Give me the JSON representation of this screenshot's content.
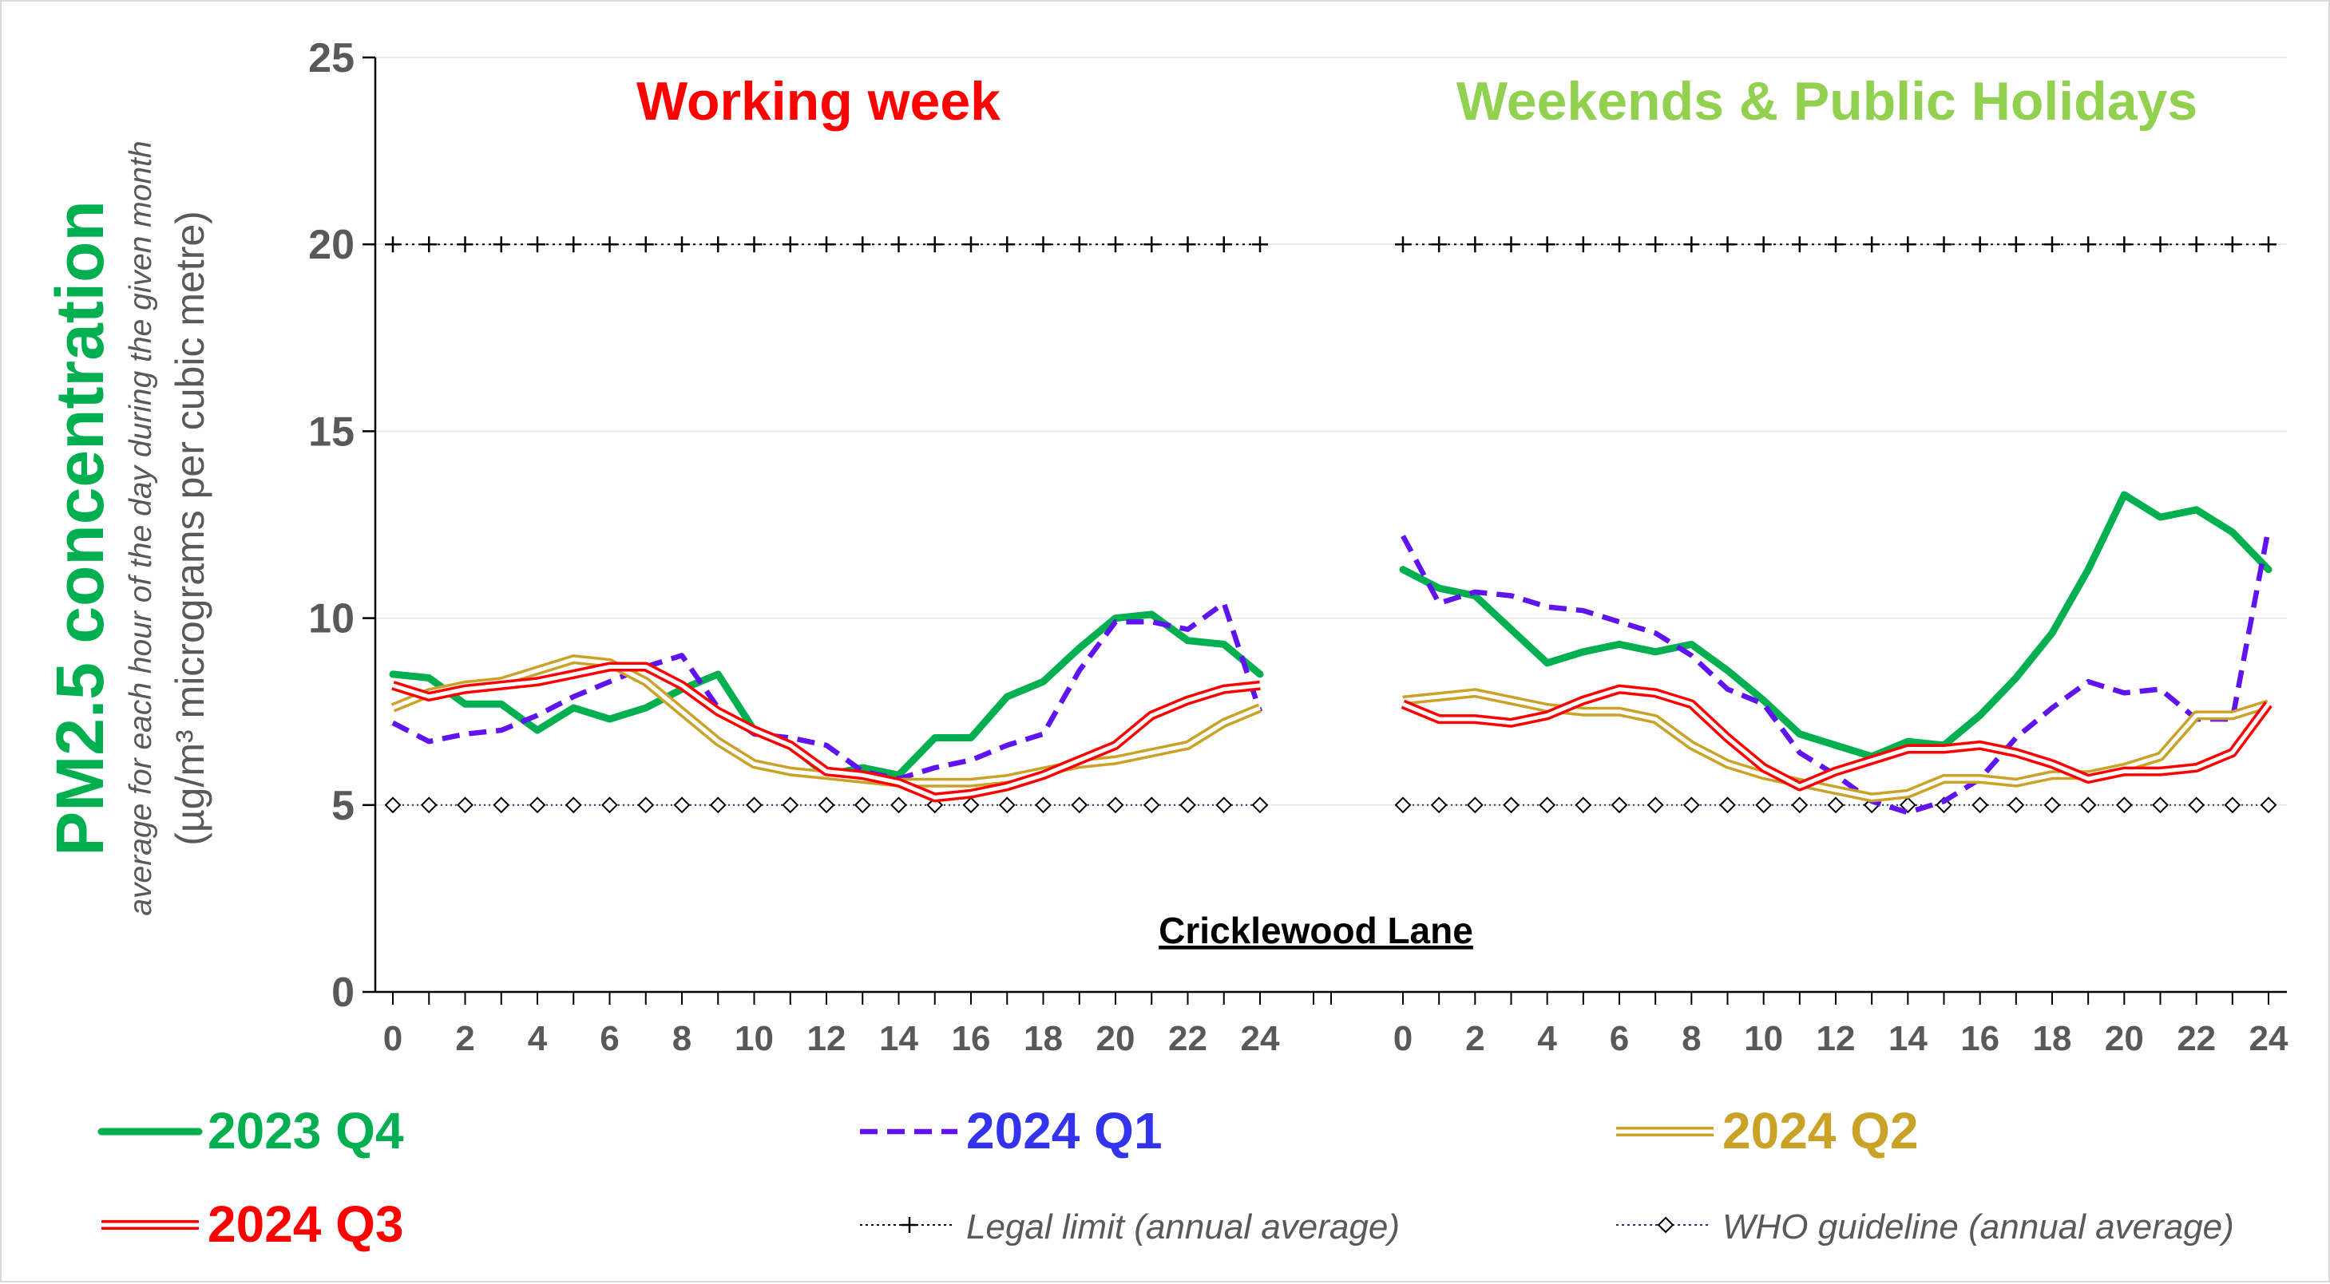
{
  "chart_data": {
    "type": "line",
    "ylabel": {
      "main": "PM2.5 concentration",
      "sub": "average for each hour of the day during the given month",
      "units": "(µg/m³ micrograms per cubic metre)"
    },
    "ylim": [
      0,
      25
    ],
    "yticks": [
      "0",
      "5",
      "10",
      "15",
      "20",
      "25"
    ],
    "xticks": [
      "0",
      "2",
      "4",
      "6",
      "8",
      "10",
      "12",
      "14",
      "16",
      "18",
      "20",
      "22",
      "24"
    ],
    "annotation": "Cricklewood Lane",
    "panels": [
      {
        "title": "Working week",
        "title_color": "#ff0000"
      },
      {
        "title": "Weekends & Public Holidays",
        "title_color": "#92d050"
      }
    ],
    "series": [
      {
        "name": "2023 Q4",
        "color": "#00b050",
        "style": "solid",
        "working_week": [
          8.5,
          8.4,
          7.7,
          7.7,
          7.0,
          7.6,
          7.3,
          7.6,
          8.1,
          8.5,
          7.0,
          6.6,
          5.8,
          6.0,
          5.8,
          6.8,
          6.8,
          7.9,
          8.3,
          9.2,
          10.0,
          10.1,
          9.4,
          9.3,
          8.5
        ],
        "weekend": [
          11.3,
          10.8,
          10.6,
          9.7,
          8.8,
          9.1,
          9.3,
          9.1,
          9.3,
          8.6,
          7.8,
          6.9,
          6.6,
          6.3,
          6.7,
          6.6,
          7.4,
          8.4,
          9.6,
          11.3,
          13.3,
          12.7,
          12.9,
          12.3,
          11.3
        ]
      },
      {
        "name": "2024 Q1",
        "color": "#5f13ef",
        "style": "dashed",
        "working_week": [
          7.2,
          6.7,
          6.9,
          7.0,
          7.4,
          7.9,
          8.3,
          8.7,
          9.0,
          7.6,
          6.9,
          6.8,
          6.6,
          5.9,
          5.7,
          6.0,
          6.2,
          6.6,
          6.9,
          8.6,
          9.9,
          9.9,
          9.7,
          10.4,
          7.5
        ],
        "weekend": [
          12.2,
          10.4,
          10.7,
          10.6,
          10.3,
          10.2,
          9.9,
          9.6,
          9.0,
          8.1,
          7.7,
          6.4,
          5.8,
          5.1,
          4.8,
          5.1,
          5.7,
          6.8,
          7.6,
          8.3,
          8.0,
          8.1,
          7.3,
          7.3,
          12.4
        ]
      },
      {
        "name": "2024 Q2",
        "color": "#c9a227",
        "style": "double",
        "working_week": [
          7.6,
          8.0,
          8.2,
          8.3,
          8.6,
          8.9,
          8.8,
          8.3,
          7.5,
          6.7,
          6.1,
          5.9,
          5.8,
          5.7,
          5.6,
          5.6,
          5.6,
          5.7,
          5.9,
          6.1,
          6.2,
          6.4,
          6.6,
          7.2,
          7.6
        ],
        "weekend": [
          7.8,
          7.9,
          8.0,
          7.8,
          7.6,
          7.5,
          7.5,
          7.3,
          6.6,
          6.1,
          5.8,
          5.6,
          5.4,
          5.2,
          5.3,
          5.7,
          5.7,
          5.6,
          5.8,
          5.8,
          6.0,
          6.3,
          7.4,
          7.4,
          7.7
        ]
      },
      {
        "name": "2024 Q3",
        "color": "#ff0000",
        "style": "double",
        "working_week": [
          8.2,
          7.9,
          8.1,
          8.2,
          8.3,
          8.5,
          8.7,
          8.7,
          8.2,
          7.5,
          7.0,
          6.6,
          5.9,
          5.8,
          5.6,
          5.2,
          5.3,
          5.5,
          5.8,
          6.2,
          6.6,
          7.4,
          7.8,
          8.1,
          8.2
        ],
        "weekend": [
          7.7,
          7.3,
          7.3,
          7.2,
          7.4,
          7.8,
          8.1,
          8.0,
          7.7,
          6.8,
          6.0,
          5.5,
          5.9,
          6.2,
          6.5,
          6.5,
          6.6,
          6.4,
          6.1,
          5.7,
          5.9,
          5.9,
          6.0,
          6.4,
          7.7
        ]
      }
    ],
    "reference_lines": [
      {
        "name": "Legal limit (annual average)",
        "value": 20,
        "color": "#000000",
        "marker": "plus"
      },
      {
        "name": "WHO guideline (annual average)",
        "value": 5,
        "color": "#1f3864",
        "marker": "diamond"
      }
    ],
    "grid": "horizontal",
    "legend_placement": "bottom"
  }
}
